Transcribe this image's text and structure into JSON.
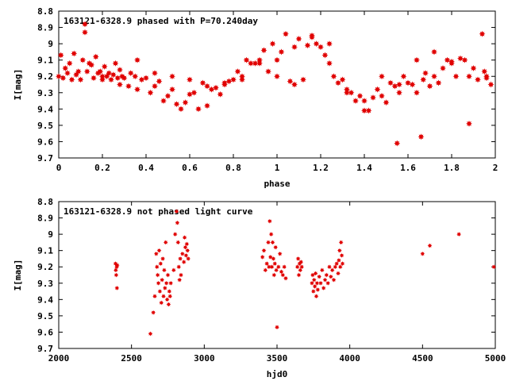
{
  "chart_data": [
    {
      "type": "scatter",
      "title": "163121-6328.9 phased with P=70.240day",
      "xlabel": "phase",
      "ylabel": "I[mag]",
      "xlim": [
        0,
        2
      ],
      "ylim": [
        8.8,
        9.7
      ],
      "y_inverted": true,
      "color": "#e00000",
      "xticks": [
        "0",
        "0.2",
        "0.4",
        "0.6",
        "0.8",
        "1",
        "1.2",
        "1.4",
        "1.6",
        "1.8",
        "2"
      ],
      "yticks": [
        "8.8",
        "8.9",
        "9",
        "9.1",
        "9.2",
        "9.3",
        "9.4",
        "9.5",
        "9.6",
        "9.7"
      ],
      "x": [
        0.0,
        0.01,
        0.02,
        0.03,
        0.05,
        0.06,
        0.07,
        0.08,
        0.09,
        0.1,
        0.11,
        0.12,
        0.13,
        0.14,
        0.15,
        0.16,
        0.17,
        0.18,
        0.19,
        0.2,
        0.21,
        0.22,
        0.23,
        0.24,
        0.25,
        0.26,
        0.27,
        0.28,
        0.29,
        0.3,
        0.32,
        0.33,
        0.35,
        0.36,
        0.38,
        0.4,
        0.42,
        0.44,
        0.46,
        0.48,
        0.5,
        0.52,
        0.54,
        0.56,
        0.58,
        0.6,
        0.62,
        0.64,
        0.66,
        0.68,
        0.7,
        0.72,
        0.74,
        0.76,
        0.78,
        0.8,
        0.82,
        0.84,
        0.86,
        0.88,
        0.9,
        0.92,
        0.94,
        0.96,
        0.98,
        1.0,
        1.02,
        1.04,
        1.06,
        1.08,
        1.1,
        1.12,
        1.14,
        1.16,
        1.18,
        1.2,
        1.22,
        1.24,
        1.26,
        1.28,
        1.3,
        1.32,
        1.34,
        1.36,
        1.38,
        1.4,
        1.42,
        1.44,
        1.46,
        1.48,
        1.5,
        1.52,
        1.54,
        1.55,
        1.56,
        1.58,
        1.6,
        1.62,
        1.64,
        1.66,
        1.67,
        1.68,
        1.7,
        1.72,
        1.74,
        1.76,
        1.78,
        1.8,
        1.82,
        1.84,
        1.86,
        1.88,
        1.9,
        1.92,
        1.94,
        1.95,
        1.96,
        1.98,
        0.04,
        0.12,
        0.2,
        0.28,
        0.36,
        0.44,
        0.52,
        0.6,
        0.68,
        0.76,
        0.84,
        0.92,
        1.0,
        1.08,
        1.16,
        1.24,
        1.32,
        1.4,
        1.48,
        1.56,
        1.64,
        1.72,
        1.8,
        1.88,
        1.96
      ],
      "y": [
        9.2,
        9.07,
        9.21,
        9.15,
        9.12,
        9.22,
        9.06,
        9.19,
        9.17,
        9.22,
        9.1,
        8.88,
        9.17,
        9.12,
        9.13,
        9.21,
        9.08,
        9.18,
        9.17,
        9.22,
        9.14,
        9.2,
        9.18,
        9.22,
        9.19,
        9.12,
        9.21,
        9.25,
        9.2,
        9.21,
        9.26,
        9.18,
        9.2,
        9.28,
        9.22,
        9.21,
        9.3,
        9.26,
        9.23,
        9.35,
        9.32,
        9.28,
        9.37,
        9.4,
        9.36,
        9.31,
        9.3,
        9.4,
        9.24,
        9.26,
        9.28,
        9.27,
        9.31,
        9.25,
        9.23,
        9.22,
        9.17,
        9.2,
        9.1,
        9.12,
        9.12,
        9.1,
        9.04,
        9.17,
        9.0,
        9.2,
        9.05,
        8.94,
        9.23,
        9.02,
        8.97,
        9.22,
        9.01,
        8.96,
        9.0,
        9.02,
        9.07,
        9.12,
        9.2,
        9.24,
        9.22,
        9.28,
        9.3,
        9.35,
        9.32,
        9.41,
        9.41,
        9.33,
        9.28,
        9.32,
        9.36,
        9.24,
        9.26,
        9.61,
        9.3,
        9.2,
        9.24,
        9.25,
        9.3,
        9.57,
        9.22,
        9.18,
        9.26,
        9.2,
        9.24,
        9.15,
        9.1,
        9.12,
        9.2,
        9.09,
        9.1,
        9.2,
        9.15,
        9.22,
        8.94,
        9.17,
        9.21,
        9.25,
        9.18,
        8.93,
        9.2,
        9.16,
        9.1,
        9.18,
        9.2,
        9.22,
        9.38,
        9.24,
        9.22,
        9.12,
        9.1,
        9.25,
        8.95,
        9.0,
        9.3,
        9.35,
        9.2,
        9.25,
        9.1,
        9.05,
        9.11,
        9.49,
        9.2
      ]
    },
    {
      "type": "scatter",
      "title": "163121-6328.9 not phased light curve",
      "xlabel": "hjd0",
      "ylabel": "I[mag]",
      "xlim": [
        2000,
        5000
      ],
      "ylim": [
        8.8,
        9.7
      ],
      "y_inverted": true,
      "color": "#e00000",
      "xticks": [
        "2000",
        "2500",
        "3000",
        "3500",
        "4000",
        "4500",
        "5000"
      ],
      "yticks": [
        "8.8",
        "8.9",
        "9",
        "9.1",
        "9.2",
        "9.3",
        "9.4",
        "9.5",
        "9.6",
        "9.7"
      ],
      "x": [
        2390,
        2392,
        2395,
        2398,
        2400,
        2402,
        2630,
        2650,
        2660,
        2670,
        2675,
        2680,
        2685,
        2690,
        2695,
        2700,
        2705,
        2710,
        2715,
        2720,
        2725,
        2730,
        2735,
        2740,
        2745,
        2750,
        2755,
        2760,
        2765,
        2770,
        2790,
        2800,
        2810,
        2815,
        2820,
        2825,
        2830,
        2835,
        2840,
        2850,
        2860,
        2865,
        2870,
        2875,
        2880,
        2885,
        2890,
        3400,
        3410,
        3420,
        3430,
        3440,
        3445,
        3450,
        3455,
        3460,
        3465,
        3470,
        3475,
        3480,
        3485,
        3490,
        3495,
        3500,
        3510,
        3520,
        3530,
        3540,
        3550,
        3560,
        3640,
        3645,
        3650,
        3655,
        3660,
        3665,
        3670,
        3740,
        3745,
        3750,
        3755,
        3760,
        3765,
        3770,
        3775,
        3780,
        3790,
        3800,
        3810,
        3820,
        3830,
        3840,
        3850,
        3860,
        3870,
        3880,
        3890,
        3900,
        3910,
        3920,
        3925,
        3930,
        3935,
        3940,
        3945,
        3950,
        4500,
        4550,
        4750,
        4990
      ],
      "y": [
        9.18,
        9.22,
        9.25,
        9.2,
        9.33,
        9.19,
        9.61,
        9.48,
        9.38,
        9.12,
        9.2,
        9.25,
        9.3,
        9.1,
        9.35,
        9.18,
        9.42,
        9.28,
        9.15,
        9.38,
        9.22,
        9.33,
        9.05,
        9.3,
        9.4,
        9.25,
        9.43,
        9.35,
        9.38,
        9.3,
        9.22,
        9.0,
        8.86,
        8.93,
        9.05,
        9.2,
        9.28,
        9.15,
        9.25,
        9.12,
        9.17,
        9.02,
        9.08,
        9.13,
        9.06,
        9.1,
        9.15,
        9.14,
        9.1,
        9.22,
        9.18,
        9.05,
        9.2,
        8.92,
        9.14,
        9.0,
        9.2,
        9.05,
        9.15,
        9.25,
        9.18,
        9.08,
        9.22,
        9.57,
        9.2,
        9.12,
        9.23,
        9.25,
        9.2,
        9.27,
        9.2,
        9.15,
        9.25,
        9.18,
        9.22,
        9.17,
        9.2,
        9.3,
        9.25,
        9.35,
        9.28,
        9.32,
        9.24,
        9.38,
        9.3,
        9.34,
        9.26,
        9.3,
        9.22,
        9.33,
        9.28,
        9.25,
        9.3,
        9.2,
        9.26,
        9.22,
        9.28,
        9.2,
        9.18,
        9.24,
        9.16,
        9.1,
        9.2,
        9.05,
        9.13,
        9.18,
        9.12,
        9.07,
        9.0,
        9.2
      ]
    }
  ]
}
